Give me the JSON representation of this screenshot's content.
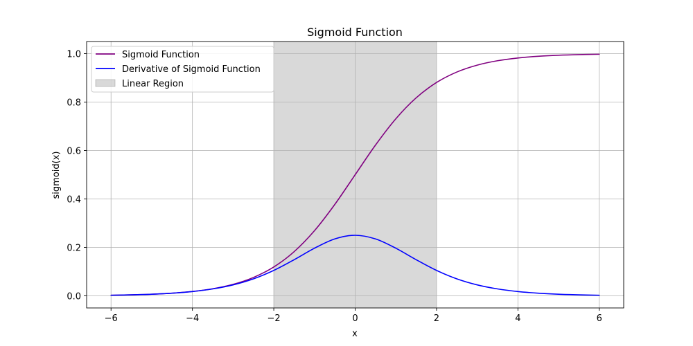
{
  "chart_data": {
    "type": "line",
    "title": "Sigmoid Function",
    "xlabel": "x",
    "ylabel": "sigmoid(x)",
    "xlim": [
      -6.6,
      6.6
    ],
    "ylim": [
      -0.05,
      1.05
    ],
    "xticks": [
      -6,
      -4,
      -2,
      0,
      2,
      4,
      6
    ],
    "xtick_labels": [
      "−6",
      "−4",
      "−2",
      "0",
      "2",
      "4",
      "6"
    ],
    "yticks": [
      0.0,
      0.2,
      0.4,
      0.6,
      0.8,
      1.0
    ],
    "ytick_labels": [
      "0.0",
      "0.2",
      "0.4",
      "0.6",
      "0.8",
      "1.0"
    ],
    "grid": true,
    "legend_position": "top-left",
    "x": [
      -6,
      -5.5,
      -5,
      -4.5,
      -4,
      -3.5,
      -3,
      -2.5,
      -2,
      -1.5,
      -1,
      -0.5,
      0,
      0.5,
      1,
      1.5,
      2,
      2.5,
      3,
      3.5,
      4,
      4.5,
      5,
      5.5,
      6
    ],
    "series": [
      {
        "name": "Sigmoid Function",
        "color": "#800080",
        "values": [
          0.0025,
          0.0041,
          0.0067,
          0.011,
          0.018,
          0.0293,
          0.0474,
          0.0759,
          0.1192,
          0.1824,
          0.2689,
          0.3775,
          0.5,
          0.6225,
          0.7311,
          0.8176,
          0.8808,
          0.9241,
          0.9526,
          0.9707,
          0.982,
          0.989,
          0.9933,
          0.9959,
          0.9975
        ]
      },
      {
        "name": "Derivative of Sigmoid Function",
        "color": "#0000ff",
        "values": [
          0.0025,
          0.0041,
          0.0066,
          0.0109,
          0.0177,
          0.0285,
          0.0452,
          0.0701,
          0.105,
          0.1491,
          0.1966,
          0.235,
          0.25,
          0.235,
          0.1966,
          0.1491,
          0.105,
          0.0701,
          0.0452,
          0.0285,
          0.0177,
          0.0109,
          0.0066,
          0.0041,
          0.0025
        ]
      }
    ],
    "spans": [
      {
        "name": "Linear Region",
        "x_range": [
          -2,
          2
        ],
        "color": "#808080",
        "opacity": 0.3
      }
    ]
  }
}
